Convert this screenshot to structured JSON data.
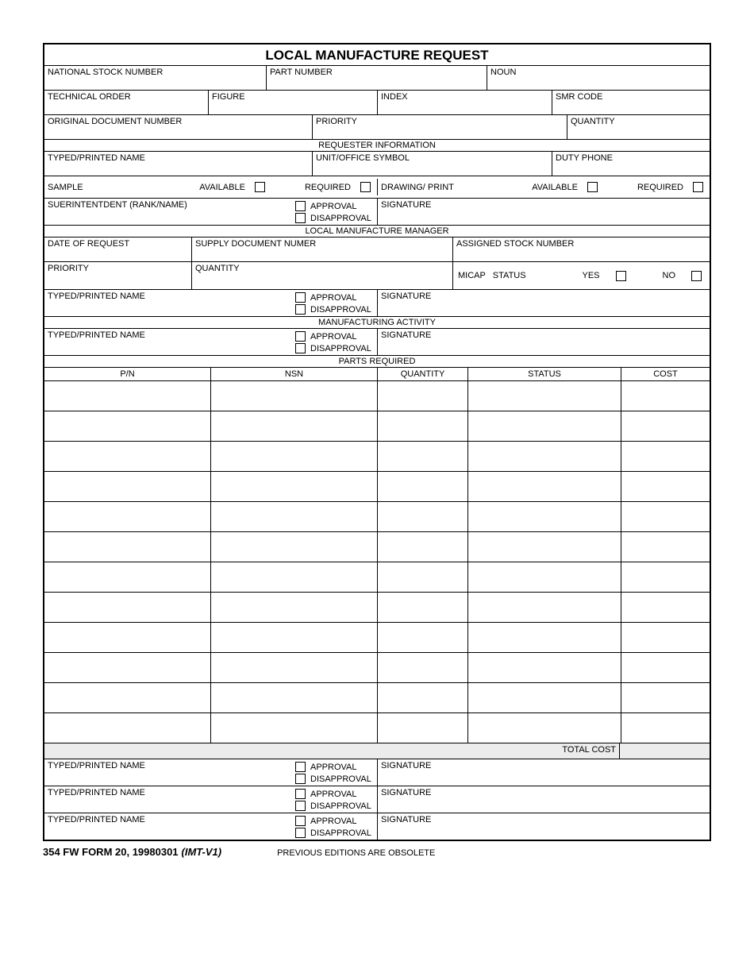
{
  "title": "LOCAL MANUFACTURE REQUEST",
  "labels": {
    "nsn": "NATIONAL STOCK NUMBER",
    "partNumber": "PART NUMBER",
    "noun": "NOUN",
    "techOrder": "TECHNICAL ORDER",
    "figure": "FIGURE",
    "index": "INDEX",
    "smrCode": "SMR CODE",
    "origDoc": "ORIGINAL DOCUMENT NUMBER",
    "priority": "PRIORITY",
    "quantity": "QUANTITY",
    "requesterInfo": "REQUESTER INFORMATION",
    "typedName": "TYPED/PRINTED NAME",
    "unitOffice": "UNIT/OFFICE SYMBOL",
    "dutyPhone": "DUTY PHONE",
    "sample": "SAMPLE",
    "available": "AVAILABLE",
    "required": "REQUIRED",
    "drawingPrint": "DRAWING/ PRINT",
    "superintendent": "SUERINTENTDENT (RANK/NAME)",
    "approval": "APPROVAL",
    "disapproval": "DISAPPROVAL",
    "signature": "SIGNATURE",
    "localMfgMgr": "LOCAL MANUFACTURE MANAGER",
    "dateOfRequest": "DATE OF REQUEST",
    "supplyDocNum": "SUPPLY DOCUMENT NUMER",
    "assignedStock": "ASSIGNED STOCK NUMBER",
    "micapStatus": "MICAP   STATUS",
    "yes": "YES",
    "no": "NO",
    "mfgActivity": "MANUFACTURING ACTIVITY",
    "partsRequired": "PARTS REQUIRED",
    "pn": "P/N",
    "nsnShort": "NSN",
    "status": "STATUS",
    "cost": "COST",
    "totalCost": "TOTAL COST"
  },
  "footer": {
    "form": "354 FW FORM 20, 19980301",
    "version": "(IMT-V1)",
    "note": "PREVIOUS EDITIONS ARE OBSOLETE"
  },
  "partsTable": {
    "colWidths": {
      "pn": 210,
      "nsn": 210,
      "quantity": 114,
      "status": 193,
      "cost": 113
    },
    "rowCount": 12
  }
}
